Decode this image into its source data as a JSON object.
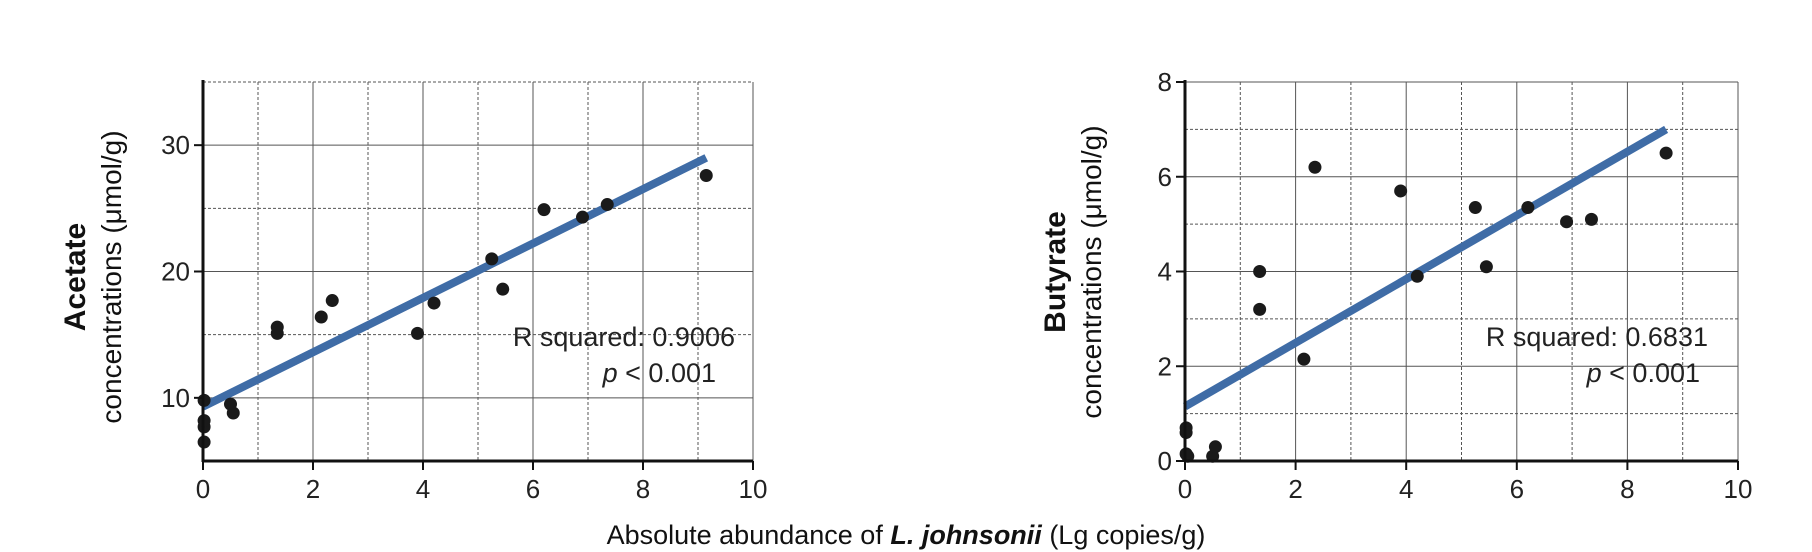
{
  "xlabel": {
    "prefix": "Absolute abundance of ",
    "species": "L. johnsonii",
    "suffix": " (Lg copies/g)"
  },
  "chart_data": [
    {
      "type": "scatter",
      "ylabel_bold": "Acetate",
      "ylabel": "concentrations (μmol/g)",
      "xlim": [
        0,
        10
      ],
      "ylim": [
        5,
        35
      ],
      "xticks": [
        0,
        2,
        4,
        6,
        8,
        10
      ],
      "yticks": [
        10,
        20,
        30
      ],
      "grid": true,
      "points": [
        [
          0.02,
          6.5
        ],
        [
          0.02,
          7.7
        ],
        [
          0.02,
          8.2
        ],
        [
          0.02,
          9.8
        ],
        [
          0.5,
          9.5
        ],
        [
          0.55,
          8.8
        ],
        [
          1.35,
          15.6
        ],
        [
          1.35,
          15.1
        ],
        [
          2.15,
          16.4
        ],
        [
          2.35,
          17.7
        ],
        [
          3.9,
          15.1
        ],
        [
          4.2,
          17.5
        ],
        [
          5.25,
          21.0
        ],
        [
          5.45,
          18.6
        ],
        [
          6.2,
          24.9
        ],
        [
          6.9,
          24.3
        ],
        [
          7.35,
          25.3
        ],
        [
          9.15,
          27.6
        ]
      ],
      "fit_line": [
        [
          0,
          9.3
        ],
        [
          9.15,
          29.0
        ]
      ],
      "annotation": {
        "r_squared": "R squared: 0.9006",
        "p_prefix": "p",
        "p_suffix": " < 0.001"
      },
      "colors": {
        "points": "#1a1a1a",
        "fit": "#3f6ca6"
      }
    },
    {
      "type": "scatter",
      "ylabel_bold": "Butyrate",
      "ylabel": "concentrations (μmol/g)",
      "xlim": [
        0,
        10
      ],
      "ylim": [
        0,
        8
      ],
      "xticks": [
        0,
        2,
        4,
        6,
        8,
        10
      ],
      "yticks": [
        0,
        2,
        4,
        6,
        8
      ],
      "grid": true,
      "points": [
        [
          0.02,
          0.7
        ],
        [
          0.02,
          0.6
        ],
        [
          0.02,
          0.15
        ],
        [
          0.05,
          0.1
        ],
        [
          0.5,
          0.1
        ],
        [
          0.55,
          0.3
        ],
        [
          1.35,
          4.0
        ],
        [
          1.35,
          3.2
        ],
        [
          2.15,
          2.15
        ],
        [
          2.35,
          6.2
        ],
        [
          3.9,
          5.7
        ],
        [
          4.2,
          3.9
        ],
        [
          5.25,
          5.35
        ],
        [
          5.45,
          4.1
        ],
        [
          6.2,
          5.35
        ],
        [
          6.9,
          5.05
        ],
        [
          7.35,
          5.1
        ],
        [
          8.7,
          6.5
        ]
      ],
      "fit_line": [
        [
          0,
          1.15
        ],
        [
          8.7,
          7.0
        ]
      ],
      "annotation": {
        "r_squared": "R squared: 0.6831",
        "p_prefix": "p",
        "p_suffix": " < 0.001"
      },
      "colors": {
        "points": "#1a1a1a",
        "fit": "#3f6ca6"
      }
    }
  ]
}
